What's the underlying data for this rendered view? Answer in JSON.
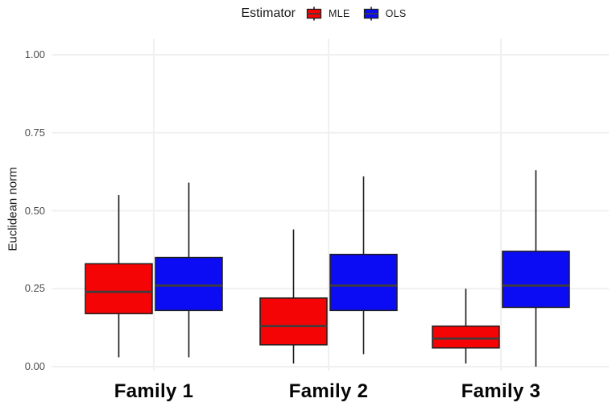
{
  "legend": {
    "title": "Estimator",
    "items": [
      {
        "label": "MLE",
        "color": "#f40404"
      },
      {
        "label": "OLS",
        "color": "#0b0bf4"
      }
    ]
  },
  "chart_data": {
    "type": "boxplot",
    "title": "",
    "xlabel": "",
    "ylabel": "Euclidean norm",
    "ylim": [
      0.0,
      1.0
    ],
    "grid": true,
    "legend_position": "top",
    "yticks": [
      {
        "label": "0.00",
        "value": 0.0
      },
      {
        "label": "0.25",
        "value": 0.25
      },
      {
        "label": "0.50",
        "value": 0.5
      },
      {
        "label": "0.75",
        "value": 0.75
      },
      {
        "label": "1.00",
        "value": 1.0
      }
    ],
    "categories": [
      "Family 1",
      "Family 2",
      "Family 3"
    ],
    "series": [
      {
        "name": "MLE",
        "color": "#f40404",
        "boxes": [
          {
            "min": 0.03,
            "q1": 0.17,
            "median": 0.24,
            "q3": 0.33,
            "max": 0.55
          },
          {
            "min": 0.01,
            "q1": 0.07,
            "median": 0.13,
            "q3": 0.22,
            "max": 0.44
          },
          {
            "min": 0.01,
            "q1": 0.06,
            "median": 0.09,
            "q3": 0.13,
            "max": 0.25
          }
        ]
      },
      {
        "name": "OLS",
        "color": "#0b0bf4",
        "boxes": [
          {
            "min": 0.03,
            "q1": 0.18,
            "median": 0.26,
            "q3": 0.35,
            "max": 0.59
          },
          {
            "min": 0.04,
            "q1": 0.18,
            "median": 0.26,
            "q3": 0.36,
            "max": 0.61
          },
          {
            "min": 0.0,
            "q1": 0.19,
            "median": 0.26,
            "q3": 0.37,
            "max": 0.63
          }
        ]
      }
    ]
  },
  "colors": {
    "grid": "#f0f0f0",
    "box_border": "#1f1f1f",
    "median_line": "#3d3d3d",
    "whisker": "#1a1a1a",
    "tick_label": "#4d4d4d",
    "axis_title": "#1a1a1a",
    "category_label": "#050505"
  }
}
